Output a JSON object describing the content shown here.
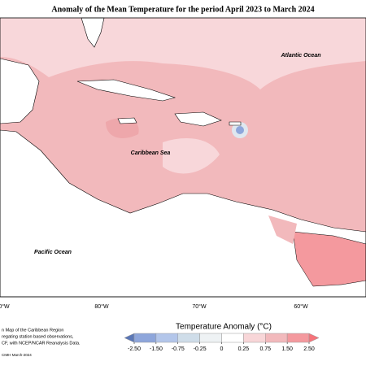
{
  "header": {
    "title": "Anomaly of the Mean Temperature for the period April 2023 to March 2024"
  },
  "map": {
    "labels": [
      "Atlantic Ocean",
      "Caribbean Sea",
      "Pacific Ocean"
    ],
    "longitude_labels": [
      "0°W",
      "80°W",
      "70°W",
      "60°W"
    ]
  },
  "legend": {
    "title": "Temperature Anomaly (°C)",
    "ticks": [
      {
        "value": -2.5,
        "label": "-2.50"
      },
      {
        "value": -1.5,
        "label": "-1.50"
      },
      {
        "value": -0.75,
        "label": "-0.75"
      },
      {
        "value": -0.25,
        "label": "-0.25"
      },
      0,
      {
        "value": 0.25,
        "label": "0.25"
      },
      {
        "value": 0.75,
        "label": "0.75"
      },
      {
        "value": 1.5,
        "label": "1.50"
      },
      {
        "value": 2.5,
        "label": "2.50"
      }
    ],
    "colors": [
      "#5b77b6",
      "#8ea6db",
      "#b3c6ea",
      "#cfdde9",
      "#eef2f4",
      "#ffffff",
      "#f8d6d8",
      "#f2b9bc",
      "#f4999e",
      "#f5737a"
    ]
  },
  "footnote": [
    "n Map of the Caribbean Region",
    "regating station based observations,",
    "CF, with NCEP/NCAR Reanalysis Data.",
    "CIMH March-2024"
  ]
}
